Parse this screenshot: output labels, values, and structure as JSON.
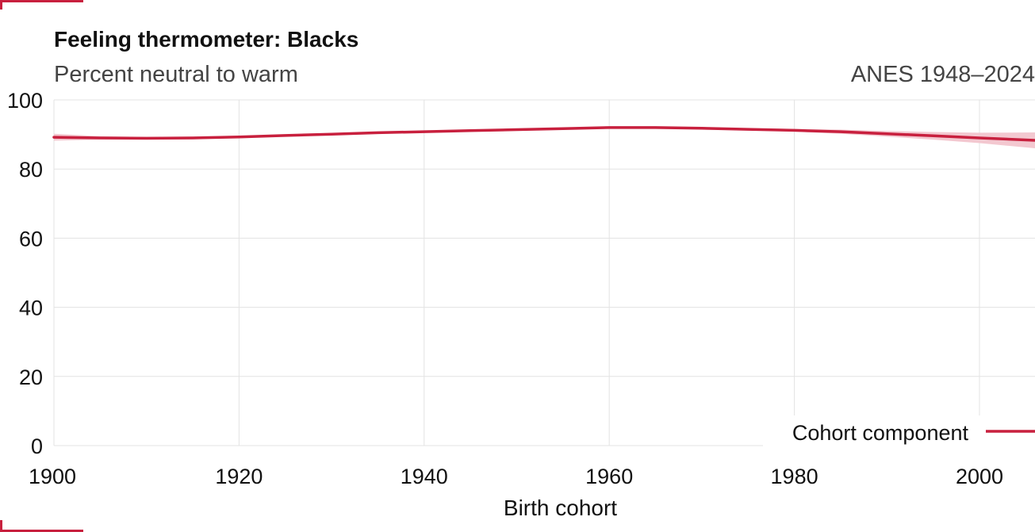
{
  "title": "Feeling thermometer: Blacks",
  "subtitle": "Percent neutral to warm",
  "source": "ANES 1948–2024",
  "colors": {
    "line": "#c8203e",
    "band": "#f2c2cb",
    "grid": "#e3e3e3",
    "text": "#111111",
    "muted": "#444444"
  },
  "chart_data": {
    "type": "line",
    "xlabel": "Birth cohort",
    "ylabel": "",
    "xlim": [
      1900,
      2006
    ],
    "ylim": [
      0,
      100
    ],
    "x_ticks": [
      1900,
      1920,
      1940,
      1960,
      1980,
      2000
    ],
    "y_ticks": [
      0,
      20,
      40,
      60,
      80,
      100
    ],
    "grid": true,
    "legend": "bottom-right",
    "series": [
      {
        "name": "Cohort component",
        "x": [
          1900,
          1905,
          1910,
          1915,
          1920,
          1925,
          1930,
          1935,
          1940,
          1945,
          1950,
          1955,
          1960,
          1965,
          1970,
          1975,
          1980,
          1985,
          1990,
          1995,
          2000,
          2006
        ],
        "y": [
          89.2,
          89.0,
          88.9,
          89.0,
          89.3,
          89.7,
          90.1,
          90.5,
          90.8,
          91.1,
          91.4,
          91.7,
          92.0,
          92.0,
          91.8,
          91.5,
          91.2,
          90.8,
          90.2,
          89.6,
          89.0,
          88.3
        ],
        "lower": [
          88.2,
          88.5,
          88.5,
          88.6,
          89.0,
          89.4,
          89.8,
          90.2,
          90.5,
          90.8,
          91.1,
          91.4,
          91.7,
          91.7,
          91.5,
          91.2,
          90.8,
          90.2,
          89.4,
          88.5,
          87.5,
          86.0
        ],
        "upper": [
          90.2,
          89.5,
          89.3,
          89.4,
          89.6,
          90.0,
          90.4,
          90.8,
          91.1,
          91.4,
          91.7,
          92.0,
          92.3,
          92.3,
          92.1,
          91.8,
          91.6,
          91.4,
          91.0,
          90.7,
          90.5,
          90.6
        ]
      }
    ]
  }
}
